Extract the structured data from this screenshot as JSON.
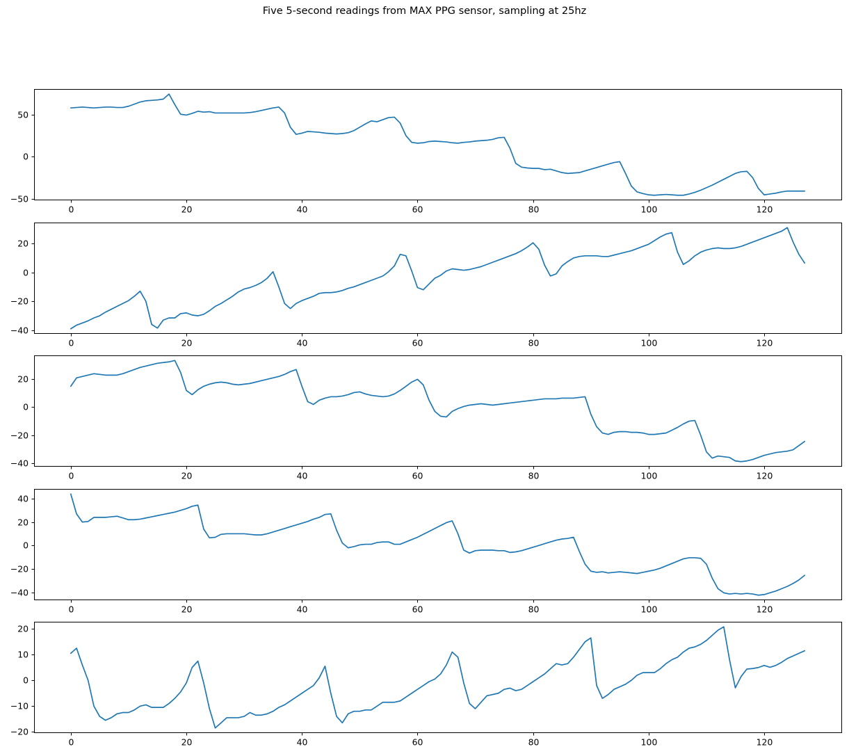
{
  "title": "Five 5-second readings from MAX PPG sensor, sampling at 25hz",
  "figure": {
    "background": "#ffffff",
    "line_color": "#1f77b4",
    "frame_color": "#000000"
  },
  "chart_data": [
    {
      "type": "line",
      "name": "reading-1",
      "x_start": 0,
      "x_step": 1,
      "xlim": [
        -6.35,
        133.35
      ],
      "ylim": [
        -52.0,
        80.5
      ],
      "xticks": [
        0,
        20,
        40,
        60,
        80,
        100,
        120
      ],
      "yticks": [
        50,
        0,
        -50
      ],
      "grid": false,
      "legend": "none",
      "title": "",
      "xlabel": "",
      "ylabel": "",
      "values": [
        58,
        58.5,
        59,
        58.5,
        58,
        58.5,
        59,
        59,
        58.5,
        58.5,
        60,
        62.5,
        65,
        66.5,
        67,
        67.5,
        68.5,
        74.5,
        62,
        50.5,
        49.5,
        51.5,
        54,
        53,
        53.5,
        52,
        52,
        52,
        52,
        52,
        52,
        52.5,
        53.5,
        55,
        56.5,
        58,
        59,
        52,
        35,
        26.5,
        28,
        30,
        29.5,
        29,
        28,
        27.5,
        27,
        27.5,
        28.5,
        31,
        35,
        39,
        42.5,
        41.5,
        44,
        46.5,
        47,
        40,
        25,
        17,
        16,
        16.5,
        18,
        18.5,
        18,
        17.5,
        16.5,
        16,
        17,
        17.5,
        18.5,
        19,
        19.5,
        20.5,
        22.5,
        23,
        10,
        -8,
        -12.5,
        -13.5,
        -14,
        -14,
        -15.5,
        -15,
        -17,
        -19,
        -20,
        -19.5,
        -19,
        -17,
        -15,
        -13,
        -11,
        -9,
        -7,
        -6,
        -20,
        -35,
        -42,
        -44,
        -45.5,
        -46,
        -45.5,
        -45,
        -45.5,
        -46,
        -46,
        -44.5,
        -42.5,
        -40,
        -37,
        -34,
        -30.5,
        -27,
        -23.5,
        -20,
        -18,
        -17.5,
        -25,
        -38,
        -45.5,
        -44.5,
        -43.5,
        -42,
        -41,
        -41,
        -41,
        -41
      ]
    },
    {
      "type": "line",
      "name": "reading-2",
      "x_start": 0,
      "x_step": 1,
      "xlim": [
        -6.35,
        133.35
      ],
      "ylim": [
        -42.5,
        34.5
      ],
      "xticks": [
        0,
        20,
        40,
        60,
        80,
        100,
        120
      ],
      "yticks": [
        20,
        0,
        -20,
        -40
      ],
      "grid": false,
      "legend": "none",
      "title": "",
      "xlabel": "",
      "ylabel": "",
      "values": [
        -39,
        -36.5,
        -35,
        -33.5,
        -31.5,
        -30,
        -27.5,
        -25.5,
        -23.5,
        -21.5,
        -19.5,
        -16.5,
        -13,
        -20,
        -36,
        -38.5,
        -33,
        -31.5,
        -31.5,
        -28.5,
        -28,
        -29.5,
        -30,
        -29,
        -26.5,
        -23.5,
        -21.5,
        -19,
        -16.5,
        -13.5,
        -11.5,
        -10.5,
        -9,
        -7,
        -4,
        0.5,
        -10,
        -21.5,
        -25,
        -21.5,
        -19.5,
        -18,
        -16.5,
        -14.5,
        -14,
        -14,
        -13.5,
        -12.5,
        -11,
        -10,
        -8.5,
        -7,
        -5.5,
        -4,
        -2.5,
        0.5,
        4.5,
        12.5,
        11.5,
        1,
        -10.5,
        -12,
        -8,
        -4,
        -2,
        1,
        2.5,
        2,
        1.5,
        2,
        3,
        4,
        5.5,
        7,
        8.5,
        10,
        11.5,
        13,
        15,
        17.5,
        20.5,
        16,
        5,
        -2.5,
        -1,
        4.5,
        7.5,
        10,
        11,
        11.5,
        11.5,
        11.5,
        11,
        11,
        12,
        13,
        14,
        15,
        16.5,
        18,
        19.5,
        22,
        24.5,
        26.5,
        27.5,
        14,
        5.5,
        8,
        11.5,
        14,
        15.5,
        16.5,
        17,
        16.5,
        16.5,
        17,
        18,
        19.5,
        21,
        22.5,
        24,
        25.5,
        27,
        28.5,
        31,
        21,
        12.5,
        6.5
      ]
    },
    {
      "type": "line",
      "name": "reading-3",
      "x_start": 0,
      "x_step": 1,
      "xlim": [
        -6.35,
        133.35
      ],
      "ylim": [
        -42.625,
        37.125
      ],
      "xticks": [
        0,
        20,
        40,
        60,
        80,
        100,
        120
      ],
      "yticks": [
        20,
        0,
        -20,
        -40
      ],
      "grid": false,
      "legend": "none",
      "title": "",
      "xlabel": "",
      "ylabel": "",
      "values": [
        15,
        21,
        22,
        23,
        24,
        23.5,
        23,
        23,
        23,
        24,
        25.5,
        27,
        28.5,
        29.5,
        30.5,
        31.5,
        32,
        32.5,
        33.5,
        25,
        12,
        9,
        12.5,
        15,
        16.5,
        17.5,
        18,
        17.5,
        16.5,
        16,
        16.5,
        17,
        18,
        19,
        20,
        21,
        22,
        23.5,
        25.5,
        27,
        15,
        4,
        2,
        5,
        6.5,
        7.5,
        7.5,
        8,
        9,
        10.5,
        11,
        9.5,
        8.5,
        8,
        7.5,
        8,
        9.5,
        12,
        15,
        18,
        20,
        16,
        5,
        -3,
        -6.5,
        -7,
        -3,
        -1,
        0.5,
        1.5,
        2,
        2.5,
        2,
        1.5,
        2,
        2.5,
        3,
        3.5,
        4,
        4.5,
        5,
        5.5,
        6,
        6,
        6,
        6.5,
        6.5,
        6.5,
        7,
        7.5,
        -5,
        -14,
        -18.5,
        -19.5,
        -18,
        -17.5,
        -17.5,
        -18,
        -18,
        -18.5,
        -19.5,
        -19.5,
        -19,
        -18.5,
        -16.5,
        -14.5,
        -12,
        -10,
        -9.5,
        -20,
        -32,
        -36.5,
        -35,
        -35.5,
        -36,
        -38.5,
        -39,
        -38.5,
        -37.5,
        -36,
        -34.5,
        -33.5,
        -32.5,
        -32,
        -31.5,
        -30.5,
        -27.5,
        -24.5
      ]
    },
    {
      "type": "line",
      "name": "reading-4",
      "x_start": 0,
      "x_step": 1,
      "xlim": [
        -6.35,
        133.35
      ],
      "ylim": [
        -46.825,
        48.325
      ],
      "xticks": [
        0,
        20,
        40,
        60,
        80,
        100,
        120
      ],
      "yticks": [
        40,
        20,
        0,
        -20,
        -40
      ],
      "grid": false,
      "legend": "none",
      "title": "",
      "xlabel": "",
      "ylabel": "",
      "values": [
        44,
        27,
        20,
        20.5,
        24,
        24,
        24,
        24.5,
        25,
        23.5,
        22,
        22,
        22.5,
        23.5,
        24.5,
        25.5,
        26.5,
        27.5,
        28.5,
        30,
        31.5,
        33.5,
        34.5,
        14,
        6.5,
        7,
        9.5,
        10,
        10,
        10,
        10,
        9.5,
        9,
        9,
        10,
        11.5,
        13,
        14.5,
        16,
        17.5,
        19,
        20.5,
        22.5,
        24,
        26.5,
        27,
        13,
        2,
        -2,
        -1,
        0.5,
        1,
        1,
        2.5,
        3,
        3,
        1,
        1,
        3,
        5,
        7,
        9.5,
        12,
        14.5,
        17,
        19.5,
        21,
        10,
        -4,
        -6.5,
        -4.5,
        -4,
        -4,
        -4,
        -4.5,
        -4.5,
        -6,
        -5.5,
        -4.5,
        -3,
        -1.5,
        0,
        1.5,
        3,
        4.5,
        5.5,
        6,
        7,
        -5,
        -16,
        -22,
        -23,
        -22.5,
        -23.5,
        -23,
        -22.5,
        -23,
        -23.5,
        -24,
        -23,
        -22,
        -21,
        -19.5,
        -17.5,
        -15.5,
        -13.5,
        -11.5,
        -10.5,
        -10.5,
        -11,
        -16,
        -28,
        -37,
        -40.5,
        -41.5,
        -41,
        -41.5,
        -41,
        -41.5,
        -42.5,
        -42,
        -40.5,
        -39,
        -37,
        -35,
        -32.5,
        -29.5,
        -25.5
      ]
    },
    {
      "type": "line",
      "name": "reading-5",
      "x_start": 0,
      "x_step": 1,
      "xlim": [
        -6.35,
        133.35
      ],
      "ylim": [
        -20.465,
        22.765
      ],
      "xticks": [
        0,
        20,
        40,
        60,
        80,
        100,
        120
      ],
      "yticks": [
        20,
        10,
        0,
        -10,
        -20
      ],
      "grid": false,
      "legend": "none",
      "title": "",
      "xlabel": "",
      "ylabel": "",
      "values": [
        10.5,
        12.5,
        6,
        0,
        -10,
        -14,
        -15.5,
        -14.5,
        -13,
        -12.5,
        -12.5,
        -11.5,
        -10,
        -9.5,
        -10.5,
        -10.5,
        -10.5,
        -9,
        -7,
        -4.5,
        -1,
        5,
        7.5,
        -1,
        -11,
        -18.5,
        -16.5,
        -14.5,
        -14.5,
        -14.5,
        -14,
        -12.5,
        -13.5,
        -13.5,
        -13,
        -12,
        -10.5,
        -9.5,
        -8,
        -6.5,
        -5,
        -3.5,
        -2,
        1,
        5.5,
        -5,
        -14,
        -16.5,
        -13,
        -12,
        -12,
        -11.5,
        -11.5,
        -10,
        -8.5,
        -8.5,
        -8.5,
        -8,
        -6.5,
        -5,
        -3.5,
        -2,
        -0.5,
        0.5,
        2.5,
        6,
        11,
        9,
        -1,
        -9,
        -11,
        -8.5,
        -6,
        -5.5,
        -5,
        -3.5,
        -3,
        -4,
        -3.5,
        -2,
        -0.5,
        1,
        2.5,
        4.5,
        6.5,
        6,
        6.5,
        9,
        12,
        15,
        16.5,
        -2,
        -7,
        -5.5,
        -3.5,
        -2.5,
        -1.5,
        0,
        2,
        3,
        3,
        3,
        4.5,
        6.5,
        8,
        9,
        11,
        12.5,
        13,
        14,
        15.5,
        17.5,
        19.5,
        20.8,
        8,
        -2.9,
        1.5,
        4.4,
        4.6,
        5,
        5.8,
        5.1,
        5.8,
        7,
        8.5,
        9.5,
        10.5,
        11.5
      ]
    }
  ]
}
